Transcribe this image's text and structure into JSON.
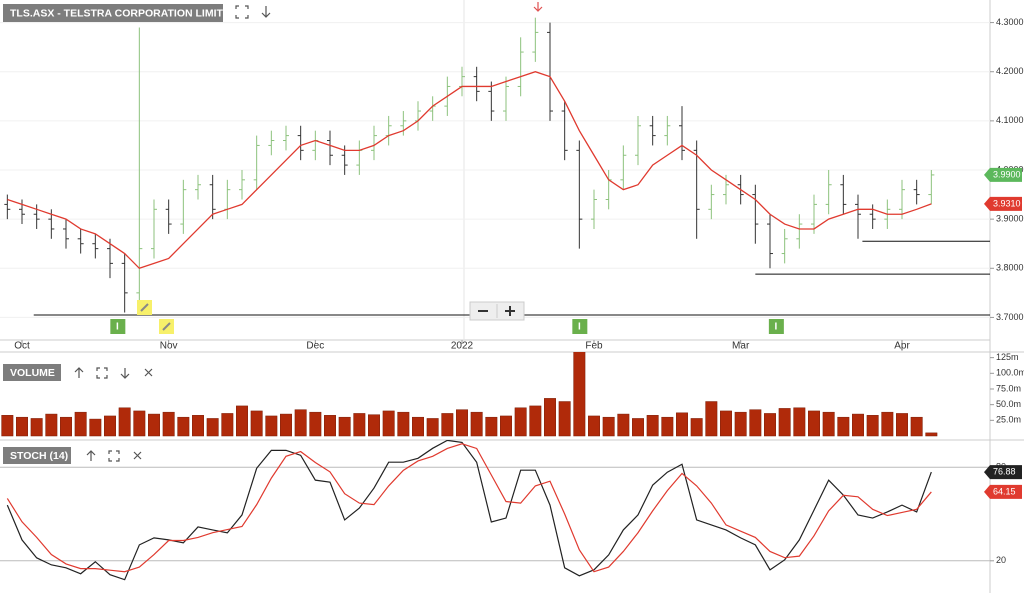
{
  "chart_data": [
    {
      "type": "ohlc",
      "title": "TLS.ASX - TELSTRA CORPORATION LIMITED",
      "xlim": [
        -0.5,
        67
      ],
      "xticks": [
        {
          "value": 1,
          "label": "Oct"
        },
        {
          "value": 11,
          "label": "Nov"
        },
        {
          "value": 21,
          "label": "Dec"
        },
        {
          "value": 31,
          "label": "2022"
        },
        {
          "value": 40,
          "label": "Feb"
        },
        {
          "value": 50,
          "label": "Mar"
        },
        {
          "value": 61,
          "label": "Apr"
        }
      ],
      "ylim": [
        3.65,
        4.35
      ],
      "yticks": [
        {
          "value": 3.7,
          "label": "3.7000"
        },
        {
          "value": 3.8,
          "label": "3.8000"
        },
        {
          "value": 3.9,
          "label": "3.9000"
        },
        {
          "value": 4.0,
          "label": "4.0000"
        },
        {
          "value": 4.1,
          "label": "4.1000"
        },
        {
          "value": 4.2,
          "label": "4.2000"
        },
        {
          "value": 4.3,
          "label": "4.3000"
        }
      ],
      "grid": true,
      "up_color": "#8cc27c",
      "down_color": "#333333",
      "open": [
        3.93,
        3.92,
        3.91,
        3.9,
        3.88,
        3.86,
        3.85,
        3.84,
        3.81,
        3.75,
        3.84,
        3.92,
        3.89,
        3.96,
        3.97,
        3.92,
        3.96,
        3.98,
        4.05,
        4.06,
        4.07,
        4.04,
        4.06,
        4.03,
        4.01,
        4.04,
        4.07,
        4.09,
        4.1,
        4.12,
        4.13,
        4.17,
        4.19,
        4.16,
        4.12,
        4.17,
        4.24,
        4.28,
        4.12,
        4.04,
        3.9,
        3.94,
        3.98,
        4.03,
        4.09,
        4.07,
        4.09,
        4.04,
        3.92,
        3.95,
        3.97,
        3.95,
        3.89,
        3.83,
        3.86,
        3.89,
        3.93,
        3.97,
        3.93,
        3.91,
        3.9,
        3.92,
        3.96,
        3.95
      ],
      "high": [
        3.95,
        3.94,
        3.93,
        3.92,
        3.9,
        3.88,
        3.87,
        3.86,
        3.83,
        4.29,
        3.94,
        3.94,
        3.98,
        3.99,
        3.99,
        3.98,
        4.0,
        4.07,
        4.08,
        4.09,
        4.09,
        4.08,
        4.08,
        4.05,
        4.06,
        4.09,
        4.11,
        4.12,
        4.14,
        4.15,
        4.19,
        4.21,
        4.21,
        4.18,
        4.19,
        4.27,
        4.31,
        4.3,
        4.14,
        4.06,
        3.96,
        4.0,
        4.05,
        4.11,
        4.11,
        4.11,
        4.13,
        4.06,
        3.97,
        3.99,
        3.99,
        3.97,
        3.91,
        3.88,
        3.91,
        3.95,
        4.0,
        3.99,
        3.95,
        3.93,
        3.94,
        3.98,
        3.98,
        4.0
      ],
      "low": [
        3.9,
        3.89,
        3.88,
        3.86,
        3.84,
        3.83,
        3.82,
        3.78,
        3.71,
        3.73,
        3.82,
        3.87,
        3.87,
        3.94,
        3.9,
        3.9,
        3.94,
        3.96,
        4.03,
        4.04,
        4.02,
        4.02,
        4.01,
        3.99,
        3.99,
        4.02,
        4.05,
        4.07,
        4.08,
        4.1,
        4.11,
        4.15,
        4.14,
        4.1,
        4.1,
        4.15,
        4.22,
        4.1,
        4.02,
        3.84,
        3.88,
        3.92,
        3.96,
        4.01,
        4.05,
        4.05,
        4.02,
        3.86,
        3.9,
        3.93,
        3.93,
        3.85,
        3.8,
        3.81,
        3.84,
        3.87,
        3.91,
        3.91,
        3.86,
        3.88,
        3.88,
        3.9,
        3.93,
        3.93
      ],
      "close": [
        3.92,
        3.91,
        3.9,
        3.88,
        3.86,
        3.85,
        3.84,
        3.81,
        3.75,
        3.84,
        3.92,
        3.89,
        3.96,
        3.97,
        3.92,
        3.96,
        3.98,
        4.05,
        4.06,
        4.07,
        4.04,
        4.06,
        4.03,
        4.01,
        4.04,
        4.07,
        4.09,
        4.1,
        4.12,
        4.13,
        4.17,
        4.19,
        4.16,
        4.12,
        4.17,
        4.24,
        4.28,
        4.12,
        4.04,
        3.9,
        3.94,
        3.98,
        4.03,
        4.09,
        4.07,
        4.09,
        4.04,
        3.92,
        3.95,
        3.97,
        3.95,
        3.89,
        3.83,
        3.86,
        3.89,
        3.93,
        3.97,
        3.93,
        3.91,
        3.9,
        3.92,
        3.96,
        3.95,
        3.99
      ],
      "close_last_label": "3.9900",
      "close_label_color": "#5cb85c",
      "ma": {
        "color": "#e03a2f",
        "last_label": "3.9310",
        "values": [
          3.94,
          3.93,
          3.92,
          3.91,
          3.9,
          3.88,
          3.87,
          3.85,
          3.83,
          3.8,
          3.81,
          3.82,
          3.85,
          3.88,
          3.91,
          3.92,
          3.93,
          3.96,
          3.99,
          4.02,
          4.05,
          4.06,
          4.05,
          4.04,
          4.04,
          4.05,
          4.07,
          4.08,
          4.1,
          4.13,
          4.15,
          4.17,
          4.17,
          4.17,
          4.18,
          4.19,
          4.2,
          4.19,
          4.14,
          4.08,
          4.03,
          3.98,
          3.96,
          3.97,
          4.01,
          4.03,
          4.05,
          4.03,
          4.0,
          3.98,
          3.96,
          3.94,
          3.91,
          3.89,
          3.88,
          3.88,
          3.9,
          3.91,
          3.92,
          3.92,
          3.91,
          3.91,
          3.92,
          3.931
        ]
      },
      "hlines": [
        {
          "value": 3.705,
          "start": 1.8
        },
        {
          "value": 3.788,
          "start": 51
        },
        {
          "value": 3.855,
          "start": 58.3
        }
      ],
      "events": [
        {
          "index": 7.5,
          "label": "I"
        },
        {
          "index": 39,
          "label": "I"
        },
        {
          "index": 52.4,
          "label": "I"
        }
      ]
    },
    {
      "type": "bar",
      "title": "VOLUME",
      "xlim": [
        -0.5,
        67
      ],
      "ylim": [
        0,
        134
      ],
      "color": "#b02a0a",
      "yticks": [
        {
          "value": 25,
          "label": "25.0m"
        },
        {
          "value": 50,
          "label": "50.0m"
        },
        {
          "value": 75,
          "label": "75.0m"
        },
        {
          "value": 100,
          "label": "100.0m"
        },
        {
          "value": 125,
          "label": "125m"
        }
      ],
      "values": [
        33,
        30,
        28,
        35,
        30,
        38,
        27,
        32,
        45,
        40,
        35,
        38,
        30,
        33,
        28,
        36,
        48,
        40,
        32,
        35,
        42,
        38,
        33,
        30,
        36,
        34,
        40,
        38,
        30,
        28,
        36,
        42,
        38,
        30,
        32,
        45,
        48,
        60,
        55,
        135,
        32,
        30,
        35,
        28,
        33,
        30,
        37,
        28,
        55,
        40,
        38,
        42,
        36,
        44,
        45,
        40,
        38,
        30,
        35,
        33,
        38,
        36,
        30,
        5
      ]
    },
    {
      "type": "line",
      "title": "STOCH (14)",
      "xlim": [
        -0.5,
        67
      ],
      "ylim": [
        0,
        100
      ],
      "yticks": [
        20,
        80
      ],
      "grid": true,
      "series": [
        {
          "color": "#222222",
          "values": [
            55.7,
            33.4,
            21.9,
            17.4,
            15.5,
            11.7,
            19.4,
            11.1,
            7.9,
            30.2,
            34.7,
            33.4,
            31.5,
            41.7,
            39.8,
            37.9,
            49.4,
            79.3,
            90.8,
            90.8,
            87.6,
            71.7,
            70.4,
            46.2,
            53.8,
            66.6,
            83.2,
            83.2,
            85.7,
            92.1,
            97.2,
            95.9,
            83.2,
            44.9,
            47.4,
            78.1,
            78.1,
            55.7,
            15.5,
            10.4,
            14.2,
            23.8,
            39.8,
            49.4,
            68.5,
            76.8,
            81.9,
            46.2,
            43.0,
            39.8,
            34.7,
            30.2,
            14.2,
            20.6,
            33.4,
            52.5,
            71.7,
            62.1,
            49.4,
            47.4,
            51.3,
            55.7,
            51.3,
            76.88
          ]
        },
        {
          "color": "#e03a2f",
          "values": [
            60,
            45,
            35,
            24,
            18,
            15,
            15,
            14,
            13,
            16,
            24,
            33,
            33,
            35,
            38,
            40,
            42,
            56,
            73,
            87,
            90,
            83,
            77,
            63,
            57,
            56,
            68,
            78,
            84,
            87,
            92,
            95,
            92,
            75,
            58,
            57,
            68,
            71,
            50,
            27,
            13,
            16,
            26,
            38,
            52,
            65,
            76,
            68,
            57,
            43,
            39,
            35,
            26,
            22,
            23,
            36,
            52,
            62,
            61,
            53,
            49,
            51,
            53,
            64.15
          ]
        }
      ]
    }
  ]
}
